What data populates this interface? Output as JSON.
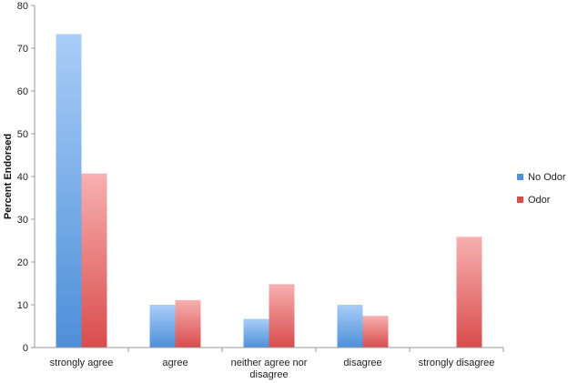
{
  "chart_data": {
    "type": "bar",
    "title": "",
    "xlabel": "",
    "ylabel": "Percent Endorsed",
    "ylim": [
      0,
      80
    ],
    "yticks": [
      0,
      10,
      20,
      30,
      40,
      50,
      60,
      70,
      80
    ],
    "grid": false,
    "legend": "right",
    "categories": [
      [
        "strongly agree"
      ],
      [
        "agree"
      ],
      [
        "neither agree nor",
        "disagree"
      ],
      [
        "disagree"
      ],
      [
        "strongly disagree"
      ]
    ],
    "series": [
      {
        "name": "No Odor",
        "color_top": "#a9cdf7",
        "color_bottom": "#4d8fd9",
        "values": [
          73.3,
          10,
          6.7,
          10,
          0
        ]
      },
      {
        "name": "Odor",
        "color_top": "#f7b0b0",
        "color_bottom": "#d94c4c",
        "values": [
          40.7,
          11.1,
          14.8,
          7.4,
          25.9
        ]
      }
    ]
  }
}
